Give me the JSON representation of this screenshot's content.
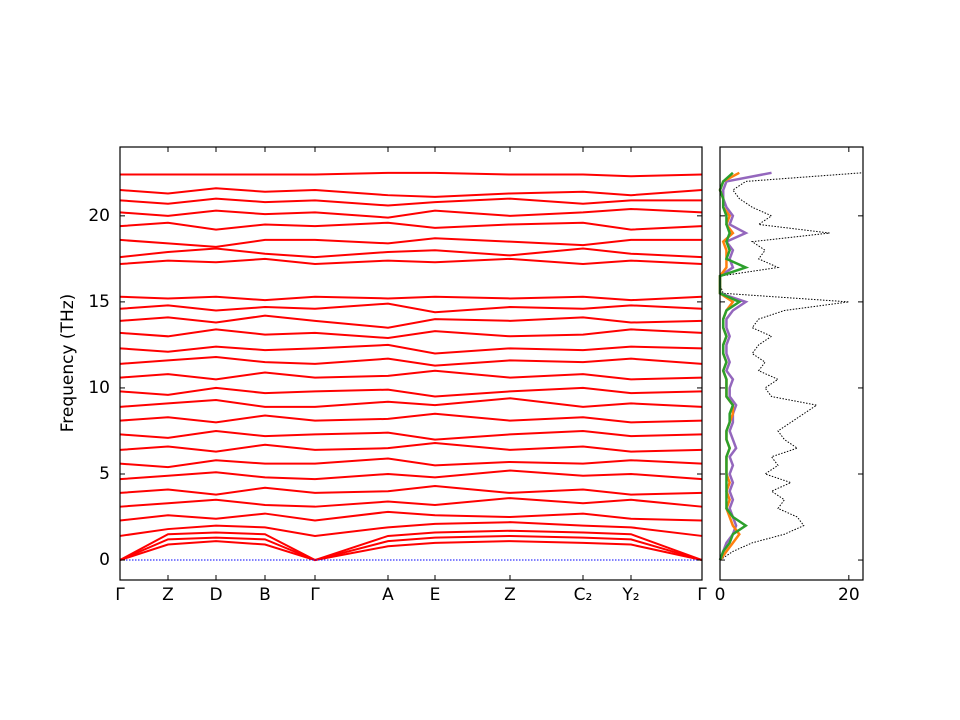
{
  "chart_data": [
    {
      "type": "band",
      "y_label": "Frequency (THz)",
      "x": [
        0,
        0.48,
        0.96,
        1.45,
        1.95,
        2.68,
        3.15,
        3.9,
        4.63,
        5.11,
        5.82
      ],
      "xlim": [
        0,
        5.82
      ],
      "xticks": [
        {
          "value": 0,
          "label": "Γ"
        },
        {
          "value": 0.48,
          "label": "Z"
        },
        {
          "value": 0.96,
          "label": "D"
        },
        {
          "value": 1.45,
          "label": "B"
        },
        {
          "value": 1.95,
          "label": "Γ"
        },
        {
          "value": 2.68,
          "label": "A"
        },
        {
          "value": 3.15,
          "label": "E"
        },
        {
          "value": 3.9,
          "label": "Z"
        },
        {
          "value": 4.63,
          "label": "C₂"
        },
        {
          "value": 5.11,
          "label": "Y₂"
        },
        {
          "value": 5.82,
          "label": "Γ"
        }
      ],
      "ylim": [
        -1.16,
        24
      ],
      "yticks": [
        0,
        5,
        10,
        15,
        20
      ],
      "series": [
        {
          "color": "#ff0000",
          "values": [
            0,
            0.9,
            1.1,
            0.9,
            0,
            0.8,
            1.0,
            1.1,
            1.0,
            0.9,
            0
          ]
        },
        {
          "color": "#ff0000",
          "values": [
            0,
            1.2,
            1.3,
            1.2,
            0,
            1.1,
            1.3,
            1.4,
            1.3,
            1.2,
            0
          ]
        },
        {
          "color": "#ff0000",
          "values": [
            0,
            1.5,
            1.6,
            1.5,
            0,
            1.4,
            1.6,
            1.7,
            1.6,
            1.5,
            0
          ]
        },
        {
          "color": "#ff0000",
          "values": [
            1.4,
            1.8,
            2.0,
            1.9,
            1.4,
            1.9,
            2.1,
            2.2,
            2.0,
            1.9,
            1.4
          ]
        },
        {
          "color": "#ff0000",
          "values": [
            2.3,
            2.6,
            2.4,
            2.7,
            2.3,
            2.8,
            2.6,
            2.5,
            2.7,
            2.4,
            2.3
          ]
        },
        {
          "color": "#ff0000",
          "values": [
            3.1,
            3.3,
            3.5,
            3.2,
            3.1,
            3.4,
            3.2,
            3.6,
            3.3,
            3.5,
            3.1
          ]
        },
        {
          "color": "#ff0000",
          "values": [
            3.9,
            4.1,
            3.8,
            4.2,
            3.9,
            4.0,
            4.3,
            3.9,
            4.1,
            3.8,
            3.9
          ]
        },
        {
          "color": "#ff0000",
          "values": [
            4.7,
            4.9,
            5.1,
            4.8,
            4.7,
            5.0,
            4.8,
            5.2,
            4.9,
            5.0,
            4.7
          ]
        },
        {
          "color": "#ff0000",
          "values": [
            5.6,
            5.4,
            5.8,
            5.6,
            5.6,
            5.9,
            5.5,
            5.7,
            5.6,
            5.8,
            5.6
          ]
        },
        {
          "color": "#ff0000",
          "values": [
            6.4,
            6.6,
            6.3,
            6.7,
            6.4,
            6.5,
            6.8,
            6.4,
            6.6,
            6.3,
            6.4
          ]
        },
        {
          "color": "#ff0000",
          "values": [
            7.3,
            7.1,
            7.5,
            7.2,
            7.3,
            7.4,
            7.0,
            7.3,
            7.5,
            7.2,
            7.3
          ]
        },
        {
          "color": "#ff0000",
          "values": [
            8.1,
            8.3,
            8.0,
            8.4,
            8.1,
            8.2,
            8.5,
            8.1,
            8.3,
            8.0,
            8.1
          ]
        },
        {
          "color": "#ff0000",
          "values": [
            8.9,
            9.1,
            9.3,
            8.9,
            8.9,
            9.2,
            9.0,
            9.4,
            8.9,
            9.1,
            8.9
          ]
        },
        {
          "color": "#ff0000",
          "values": [
            9.8,
            9.6,
            10.0,
            9.7,
            9.8,
            9.9,
            9.5,
            9.8,
            10.0,
            9.7,
            9.8
          ]
        },
        {
          "color": "#ff0000",
          "values": [
            10.6,
            10.8,
            10.5,
            10.9,
            10.6,
            10.7,
            11.0,
            10.6,
            10.8,
            10.5,
            10.6
          ]
        },
        {
          "color": "#ff0000",
          "values": [
            11.4,
            11.6,
            11.8,
            11.5,
            11.4,
            11.7,
            11.3,
            11.6,
            11.5,
            11.7,
            11.4
          ]
        },
        {
          "color": "#ff0000",
          "values": [
            12.3,
            12.1,
            12.4,
            12.2,
            12.3,
            12.5,
            12.0,
            12.3,
            12.2,
            12.4,
            12.3
          ]
        },
        {
          "color": "#ff0000",
          "values": [
            13.2,
            13.0,
            13.4,
            13.1,
            13.2,
            12.9,
            13.3,
            13.0,
            13.1,
            13.4,
            13.2
          ]
        },
        {
          "color": "#ff0000",
          "values": [
            13.9,
            14.1,
            13.8,
            14.2,
            13.9,
            13.5,
            14.0,
            13.9,
            14.1,
            13.8,
            13.9
          ]
        },
        {
          "color": "#ff0000",
          "values": [
            14.6,
            14.8,
            14.5,
            14.7,
            14.6,
            14.9,
            14.4,
            14.7,
            14.6,
            14.8,
            14.6
          ]
        },
        {
          "color": "#ff0000",
          "values": [
            15.3,
            15.2,
            15.3,
            15.1,
            15.3,
            15.2,
            15.3,
            15.2,
            15.3,
            15.1,
            15.3
          ]
        },
        {
          "color": "#ff0000",
          "values": [
            17.2,
            17.4,
            17.3,
            17.5,
            17.2,
            17.4,
            17.3,
            17.5,
            17.2,
            17.4,
            17.2
          ]
        },
        {
          "color": "#ff0000",
          "values": [
            17.6,
            17.9,
            18.1,
            17.8,
            17.6,
            17.9,
            18.0,
            17.7,
            18.1,
            17.8,
            17.6
          ]
        },
        {
          "color": "#ff0000",
          "values": [
            18.6,
            18.4,
            18.2,
            18.6,
            18.6,
            18.4,
            18.7,
            18.5,
            18.3,
            18.6,
            18.6
          ]
        },
        {
          "color": "#ff0000",
          "values": [
            19.4,
            19.6,
            19.2,
            19.5,
            19.4,
            19.6,
            19.3,
            19.5,
            19.6,
            19.2,
            19.4
          ]
        },
        {
          "color": "#ff0000",
          "values": [
            20.2,
            20.0,
            20.3,
            20.1,
            20.2,
            19.9,
            20.3,
            20.0,
            20.2,
            20.4,
            20.2
          ]
        },
        {
          "color": "#ff0000",
          "values": [
            20.9,
            20.7,
            21.0,
            20.8,
            20.9,
            20.6,
            20.8,
            21.0,
            20.7,
            20.9,
            20.9
          ]
        },
        {
          "color": "#ff0000",
          "values": [
            21.5,
            21.3,
            21.6,
            21.4,
            21.5,
            21.2,
            21.1,
            21.3,
            21.4,
            21.2,
            21.5
          ]
        },
        {
          "color": "#ff0000",
          "values": [
            22.4,
            22.4,
            22.4,
            22.4,
            22.4,
            22.5,
            22.5,
            22.4,
            22.4,
            22.3,
            22.4
          ]
        },
        {
          "color": "#0000ff",
          "line_style": "dotted",
          "values": [
            0,
            0,
            0,
            0,
            0,
            0,
            0,
            0,
            0,
            0,
            0
          ]
        }
      ]
    },
    {
      "type": "dos",
      "y": [
        0,
        0.5,
        1,
        1.5,
        2,
        2.5,
        3,
        3.5,
        4,
        4.5,
        5,
        5.5,
        6,
        6.5,
        7,
        7.5,
        8,
        8.5,
        9,
        9.5,
        10,
        10.5,
        11,
        11.5,
        12,
        12.5,
        13,
        13.5,
        14,
        14.5,
        15,
        15.5,
        16,
        16.5,
        17,
        17.5,
        18,
        18.5,
        19,
        19.5,
        20,
        20.5,
        21,
        21.5,
        22,
        22.5
      ],
      "xlim": [
        0,
        22.2
      ],
      "xticks": [
        0,
        20
      ],
      "ylim": [
        -1.16,
        24
      ],
      "yticks": [
        0,
        5,
        10,
        15,
        20
      ],
      "series": [
        {
          "color": "#000000",
          "line_style": "dotted",
          "values": [
            0,
            2,
            5,
            10,
            13,
            12,
            9,
            10,
            8,
            11,
            7,
            9,
            8,
            12,
            10,
            9,
            11,
            13,
            15,
            8,
            7,
            9,
            6,
            7,
            5,
            6,
            8,
            5,
            6,
            10,
            20,
            0.5,
            0,
            0,
            9,
            6,
            7,
            5,
            17,
            6,
            8,
            5,
            3,
            2,
            4,
            22
          ]
        },
        {
          "color": "#9467bd",
          "values": [
            0,
            0.5,
            1,
            2,
            2.5,
            2,
            1.5,
            2,
            1.5,
            2,
            1.5,
            2,
            1.5,
            2.5,
            2,
            1.5,
            2,
            2,
            2.5,
            1.5,
            1.5,
            2,
            1,
            1.5,
            1,
            1,
            1.5,
            1,
            1,
            2,
            4,
            0,
            0,
            0,
            2,
            1.5,
            2,
            1,
            4,
            1.5,
            2,
            1,
            0.5,
            0.5,
            1,
            8
          ]
        },
        {
          "color": "#ff7f0e",
          "values": [
            0,
            1,
            2,
            3,
            2,
            1.5,
            1,
            1.5,
            1,
            1.5,
            1,
            1,
            1,
            1.5,
            1,
            1,
            1.5,
            2,
            2,
            1,
            1,
            1,
            0.5,
            1,
            0.5,
            0.5,
            1,
            0.5,
            0.5,
            1,
            2,
            0,
            0,
            0,
            1,
            1,
            1,
            0.5,
            2,
            1,
            1.5,
            0.5,
            0.5,
            0,
            0.5,
            3
          ]
        },
        {
          "color": "#2ca02c",
          "values": [
            0,
            0.5,
            1.5,
            2,
            4,
            2,
            1,
            1,
            1,
            1,
            1,
            1,
            1,
            1.5,
            1,
            1,
            1.5,
            1.5,
            2,
            1,
            1,
            1,
            0.5,
            1,
            0.5,
            0.5,
            1,
            0.5,
            0.5,
            1,
            3,
            0,
            0,
            0,
            4,
            1,
            1.5,
            1,
            1.5,
            1,
            1,
            0.5,
            0.5,
            0,
            0.5,
            2
          ]
        }
      ]
    }
  ]
}
